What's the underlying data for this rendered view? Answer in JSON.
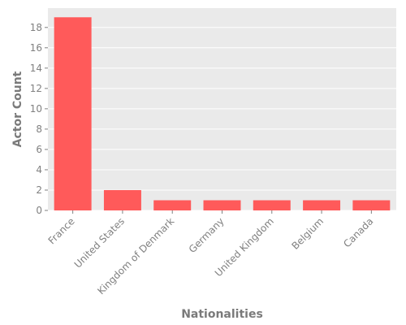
{
  "chart_data": {
    "type": "bar",
    "title": "",
    "xlabel": "Nationalities",
    "ylabel": "Actor Count",
    "categories": [
      "France",
      "United States",
      "Kingdom of Denmark",
      "Germany",
      "United Kingdom",
      "Belgium",
      "Canada"
    ],
    "values": [
      19,
      2,
      1,
      1,
      1,
      1,
      1
    ],
    "ylim": [
      0,
      19.9
    ],
    "yticks": [
      0,
      2,
      4,
      6,
      8,
      10,
      12,
      14,
      16,
      18
    ],
    "grid": true,
    "legend": "none",
    "colors": {
      "bar": "#ff5a5a",
      "plot_background": "#eaeaea",
      "grid": "#ffffff",
      "text": "#808080"
    }
  }
}
